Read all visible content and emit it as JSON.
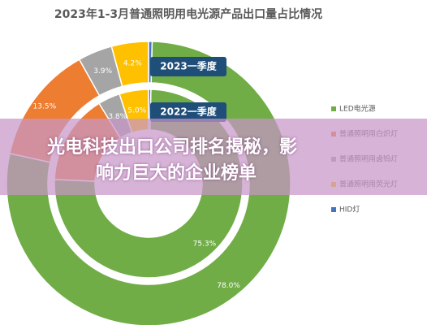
{
  "chart_data": {
    "type": "donut",
    "title": "2023年1-3月普通照明用电光源产品出口量占比情况",
    "categories": [
      "LED电光源",
      "普通照明用白炽灯",
      "普通照明用卤钨灯",
      "普通照明用荧光灯",
      "HID灯"
    ],
    "series": [
      {
        "name": "2023一季度",
        "values": [
          78.0,
          13.5,
          3.9,
          4.2,
          0.4
        ],
        "value_labels": [
          "78.0%",
          "13.5%",
          "3.9%",
          "4.2%",
          null
        ]
      },
      {
        "name": "2022一季度",
        "values": [
          75.3,
          15.5,
          3.8,
          5.0,
          0.4
        ],
        "value_labels": [
          "75.3%",
          null,
          "3.8%",
          "5.0%",
          null
        ]
      }
    ],
    "colors": [
      "#70ad47",
      "#ed7d31",
      "#a5a5a5",
      "#ffc000",
      "#4472c4"
    ],
    "overlay_title": [
      "光电科技出口公司排名揭秘，影",
      "响力巨大的企业榜单"
    ]
  }
}
